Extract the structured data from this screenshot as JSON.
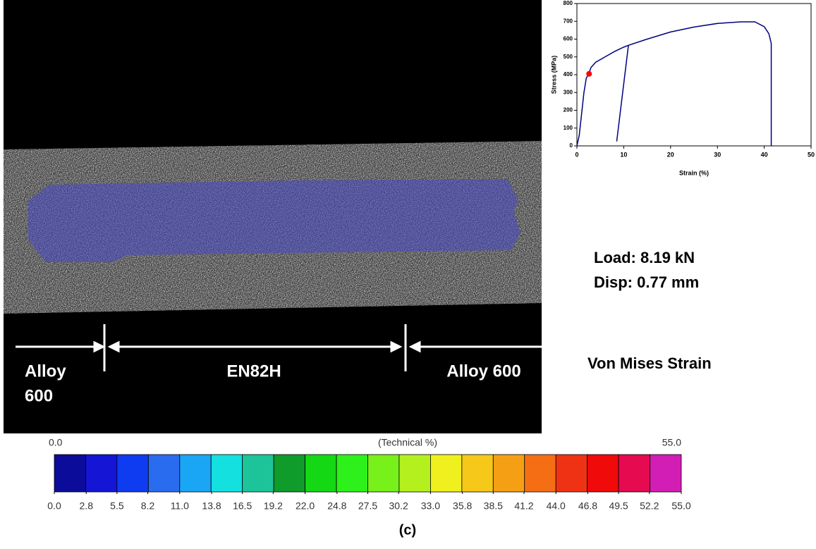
{
  "chart_data": {
    "type": "line",
    "xlabel": "Strain (%)",
    "ylabel": "Stress (MPa)",
    "xlim": [
      0,
      50
    ],
    "ylim": [
      0,
      800
    ],
    "xticks": [
      0,
      10,
      20,
      30,
      40,
      50
    ],
    "yticks": [
      0,
      100,
      200,
      300,
      400,
      500,
      600,
      700,
      800
    ],
    "series": [
      {
        "color": "#000080",
        "x": [
          0,
          0.5,
          1,
          1.5,
          2,
          2.6,
          3,
          4,
          6,
          8,
          10,
          11,
          8.5,
          11,
          15,
          20,
          25,
          30,
          35,
          38,
          40,
          41,
          41.5,
          41.5
        ],
        "values": [
          0,
          60,
          180,
          300,
          380,
          410,
          440,
          470,
          500,
          530,
          555,
          565,
          25,
          565,
          600,
          640,
          668,
          688,
          697,
          697,
          670,
          630,
          575,
          0
        ]
      }
    ],
    "marker": {
      "color": "#ff0000",
      "x": 2.6,
      "value": 405
    }
  },
  "photo": {
    "left_label": [
      "Alloy",
      "600"
    ],
    "middle_label": "EN82H",
    "right_label": "Alloy 600"
  },
  "readout": {
    "load": "Load:  8.19 kN",
    "disp": "Disp:  0.77 mm",
    "quantity": "Von Mises Strain"
  },
  "colorbar": {
    "title": "(Technical %)",
    "lim": [
      0,
      55
    ],
    "end_labels": [
      {
        "value": 0,
        "label": "0.0"
      },
      {
        "value": 55,
        "label": "55.0"
      }
    ],
    "ticks": [
      {
        "value": 0,
        "label": "0.0"
      },
      2.8,
      5.5,
      8.2,
      {
        "value": 11,
        "label": "11.0"
      },
      13.8,
      16.5,
      19.2,
      {
        "value": 22,
        "label": "22.0"
      },
      24.8,
      27.5,
      30.2,
      {
        "value": 33,
        "label": "33.0"
      },
      35.8,
      38.5,
      41.2,
      {
        "value": 44,
        "label": "44.0"
      },
      46.8,
      49.5,
      52.2,
      {
        "value": 55,
        "label": "55.0"
      }
    ],
    "colors": [
      "#0c0c9a",
      "#1515d6",
      "#0f3cf0",
      "#2a6cf0",
      "#1aa6f5",
      "#14e0e0",
      "#1dc49a",
      "#0f9c2a",
      "#14d814",
      "#2ef01a",
      "#78f01a",
      "#b4f01e",
      "#f0f01e",
      "#f5c81a",
      "#f5a014",
      "#f56e14",
      "#f03214",
      "#f00a0a",
      "#e60a50",
      "#d21eb4"
    ]
  },
  "caption": "(c)"
}
